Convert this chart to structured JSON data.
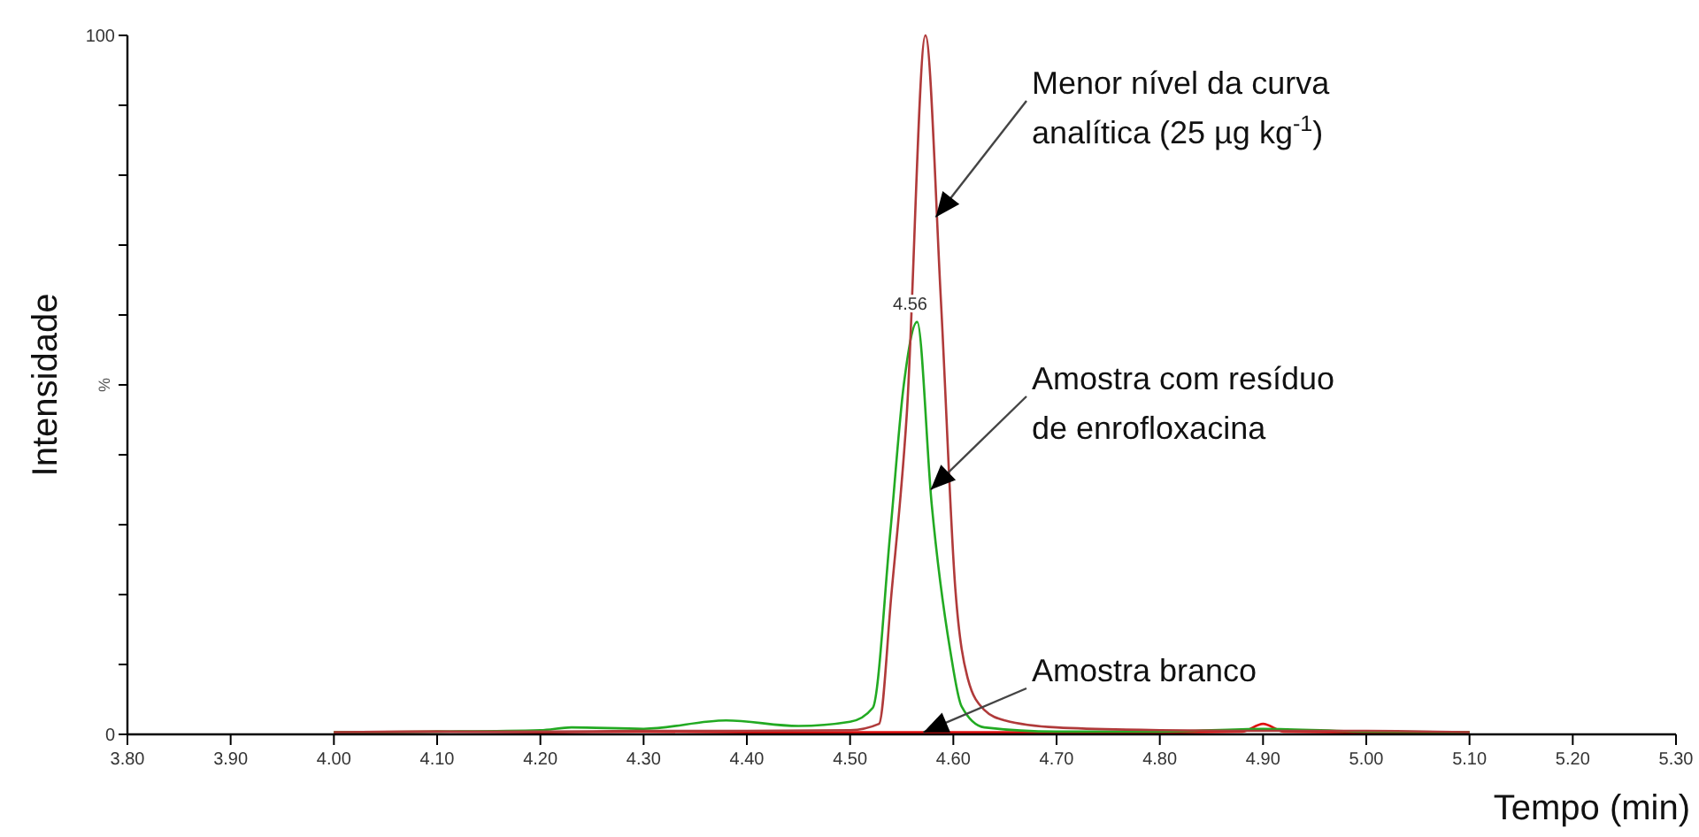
{
  "chart_data": {
    "type": "line",
    "xlabel": "Tempo (min)",
    "ylabel": "Intensidade",
    "xlim": [
      3.8,
      5.3
    ],
    "ylim": [
      0,
      100
    ],
    "xticks": [
      {
        "value": 3.8,
        "label": "3.80"
      },
      {
        "value": 3.9,
        "label": "3.90"
      },
      {
        "value": 4.0,
        "label": "4.00"
      },
      {
        "value": 4.1,
        "label": "4.10"
      },
      {
        "value": 4.2,
        "label": "4.20"
      },
      {
        "value": 4.3,
        "label": "4.30"
      },
      {
        "value": 4.4,
        "label": "4.40"
      },
      {
        "value": 4.5,
        "label": "4.50"
      },
      {
        "value": 4.6,
        "label": "4.60"
      },
      {
        "value": 4.7,
        "label": "4.70"
      },
      {
        "value": 4.8,
        "label": "4.80"
      },
      {
        "value": 4.9,
        "label": "4.90"
      },
      {
        "value": 5.0,
        "label": "5.00"
      },
      {
        "value": 5.1,
        "label": "5.10"
      },
      {
        "value": 5.2,
        "label": "5.20"
      },
      {
        "value": 5.3,
        "label": "5.30"
      }
    ],
    "yticks": [
      0,
      {
        "value": 10,
        "label": null
      },
      {
        "value": 20,
        "label": null
      },
      {
        "value": 30,
        "label": null
      },
      {
        "value": 40,
        "label": null
      },
      {
        "value": 50,
        "label": null
      },
      {
        "value": 60,
        "label": null
      },
      {
        "value": 70,
        "label": null
      },
      {
        "value": 80,
        "label": null
      },
      {
        "value": 90,
        "label": null
      },
      100
    ],
    "grid": false,
    "marker": "none",
    "line_style": "solid",
    "series": [
      {
        "color": "#e01010",
        "x": [
          4.0,
          4.1,
          4.2,
          4.3,
          4.4,
          4.5,
          4.6,
          4.7,
          4.8,
          4.88,
          4.9,
          4.92,
          5.0,
          5.1
        ],
        "values": [
          0.3,
          0.4,
          0.3,
          0.4,
          0.3,
          0.3,
          0.3,
          0.3,
          0.3,
          0.4,
          1.5,
          0.4,
          0.3,
          0.3
        ]
      },
      {
        "color": "#22aa22",
        "x": [
          4.0,
          4.1,
          4.2,
          4.23,
          4.3,
          4.38,
          4.45,
          4.5,
          4.522,
          4.539,
          4.552,
          4.565,
          4.579,
          4.597,
          4.608,
          4.63,
          4.7,
          4.8,
          4.9,
          5.0,
          5.1
        ],
        "values": [
          0.3,
          0.4,
          0.6,
          1.0,
          0.8,
          2.0,
          1.2,
          1.8,
          3.8,
          29,
          50,
          59,
          33,
          12,
          4,
          1,
          0.4,
          0.4,
          0.8,
          0.4,
          0.3
        ]
      },
      {
        "color": "#b03a3a",
        "x": [
          4.0,
          4.1,
          4.2,
          4.3,
          4.4,
          4.5,
          4.528,
          4.54,
          4.555,
          4.573,
          4.588,
          4.602,
          4.614,
          4.63,
          4.65,
          4.7,
          4.8,
          4.9,
          5.0,
          5.1
        ],
        "values": [
          0.3,
          0.4,
          0.4,
          0.5,
          0.5,
          0.6,
          1.5,
          20,
          46,
          100,
          62,
          20.7,
          8,
          3.5,
          2,
          1,
          0.6,
          0.5,
          0.5,
          0.3
        ]
      }
    ],
    "annotations": [
      "%",
      {
        "text": "4.56",
        "x": 4.565,
        "y": 59
      },
      {
        "text": "Menor nível da curva analítica (25 µg kg$^{-1}$)",
        "x": 4.583,
        "y": 74
      },
      {
        "text": "Amostra com resíduo de enrofloxacina",
        "x": 4.578,
        "y": 35
      },
      {
        "text": "Amostra branco",
        "x": 4.571,
        "y": 0.3
      }
    ]
  }
}
